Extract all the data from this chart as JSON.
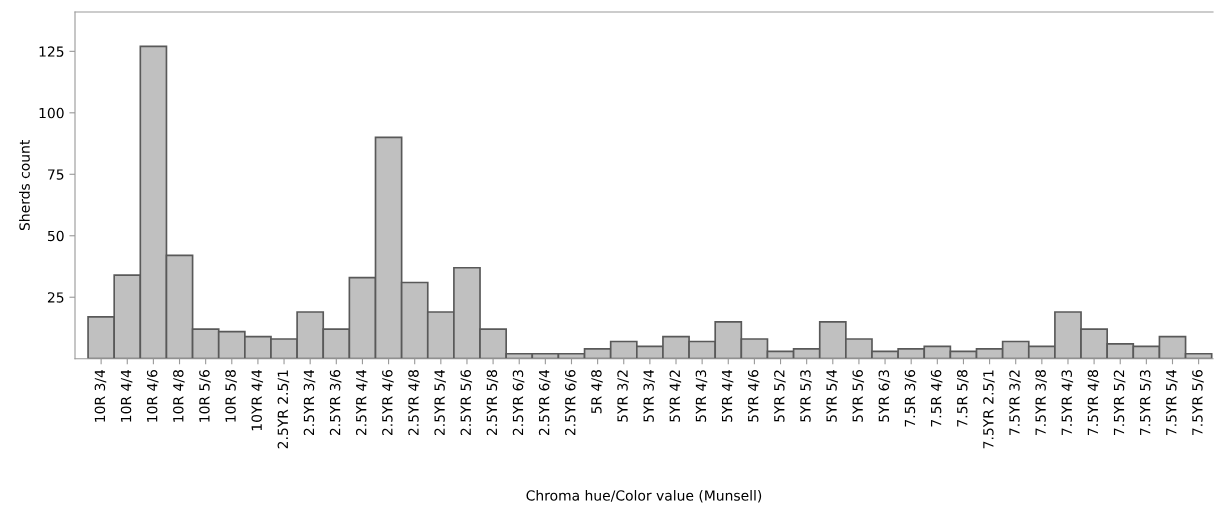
{
  "chart_data": {
    "type": "bar",
    "xlabel": "Chroma hue/Color value (Munsell)",
    "ylabel": "Sherds count",
    "categories": [
      "10R 3/4",
      "10R 4/4",
      "10R 4/6",
      "10R 4/8",
      "10R 5/6",
      "10R 5/8",
      "10YR 4/4",
      "2.5YR 2.5/1",
      "2.5YR 3/4",
      "2.5YR 3/6",
      "2.5YR 4/4",
      "2.5YR 4/6",
      "2.5YR 4/8",
      "2.5YR 5/4",
      "2.5YR 5/6",
      "2.5YR 5/8",
      "2.5YR 6/3",
      "2.5YR 6/4",
      "2.5YR 6/6",
      "5R 4/8",
      "5YR 3/2",
      "5YR 3/4",
      "5YR 4/2",
      "5YR 4/3",
      "5YR 4/4",
      "5YR 4/6",
      "5YR 5/2",
      "5YR 5/3",
      "5YR 5/4",
      "5YR 5/6",
      "5YR 6/3",
      "7.5R 3/6",
      "7.5R 4/6",
      "7.5R 5/8",
      "7.5YR 2.5/1",
      "7.5YR 3/2",
      "7.5YR 3/8",
      "7.5YR 4/3",
      "7.5YR 4/8",
      "7.5YR 5/2",
      "7.5YR 5/3",
      "7.5YR 5/4",
      "7.5YR 5/6"
    ],
    "values": [
      17,
      34,
      127,
      42,
      12,
      11,
      9,
      8,
      19,
      12,
      33,
      90,
      31,
      19,
      37,
      12,
      2,
      2,
      2,
      4,
      7,
      5,
      9,
      7,
      15,
      8,
      3,
      4,
      15,
      8,
      3,
      4,
      5,
      3,
      4,
      7,
      5,
      19,
      12,
      6,
      5,
      9,
      2
    ],
    "color": "#c0c0c0",
    "ylim": [
      0,
      141
    ],
    "yticks": [
      25,
      50,
      75,
      100,
      125
    ],
    "grid": false,
    "legend": false
  }
}
